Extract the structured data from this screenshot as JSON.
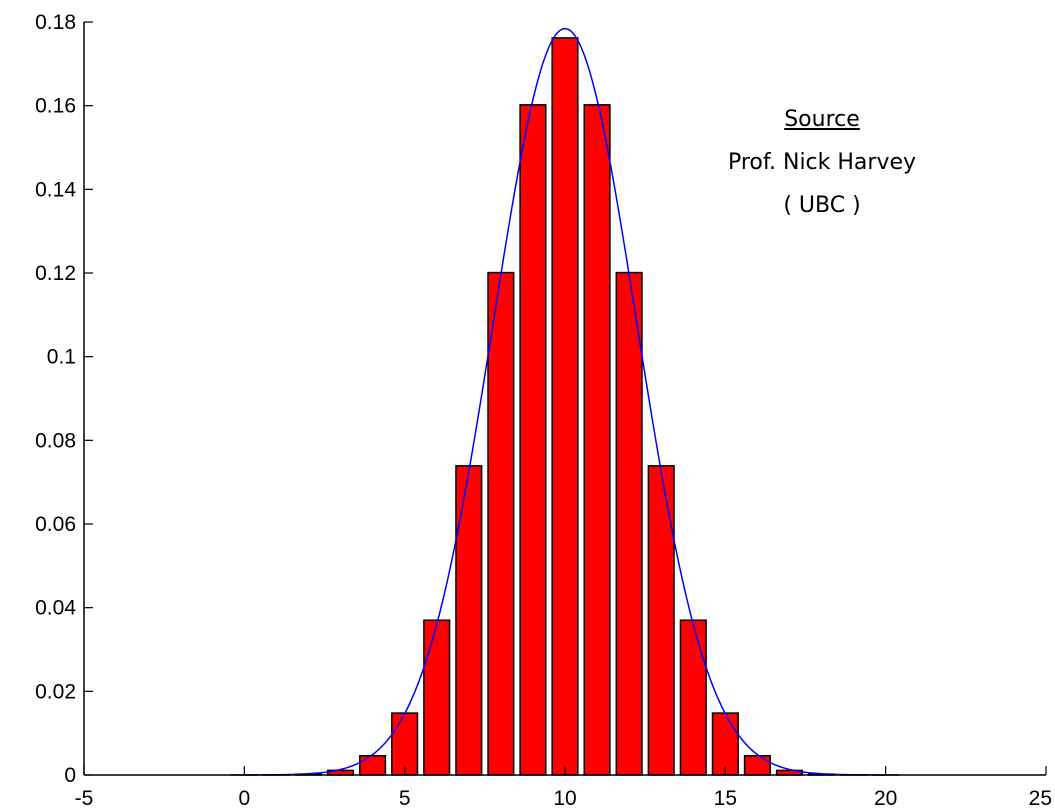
{
  "chart_data": {
    "type": "bar",
    "title": "",
    "xlabel": "",
    "ylabel": "",
    "xlim": [
      -5,
      25
    ],
    "ylim": [
      0,
      0.18
    ],
    "xticks": [
      -5,
      0,
      5,
      10,
      15,
      20,
      25
    ],
    "xtick_labels": [
      "-5",
      "0",
      "5",
      "10",
      "15",
      "20",
      "25"
    ],
    "yticks": [
      0,
      0.02,
      0.04,
      0.06,
      0.08,
      0.1,
      0.12,
      0.14,
      0.16,
      0.18
    ],
    "ytick_labels": [
      "0",
      "0.02",
      "0.04",
      "0.06",
      "0.08",
      "0.1",
      "0.12",
      "0.14",
      "0.16",
      "0.18"
    ],
    "grid": false,
    "series": [
      {
        "kind": "bar",
        "color": "#ff0000",
        "edge_color": "#000000",
        "x": [
          0,
          1,
          2,
          3,
          4,
          5,
          6,
          7,
          8,
          9,
          10,
          11,
          12,
          13,
          14,
          15,
          16,
          17,
          18,
          19,
          20
        ],
        "values": [
          1e-06,
          2e-05,
          0.0002,
          0.0011,
          0.0046,
          0.0148,
          0.037,
          0.0739,
          0.1201,
          0.1602,
          0.1762,
          0.1602,
          0.1201,
          0.0739,
          0.037,
          0.0148,
          0.0046,
          0.0011,
          0.0002,
          2e-05,
          1e-06
        ]
      },
      {
        "kind": "line",
        "color": "#0000ff",
        "curve": "normal",
        "mean": 10,
        "sd": 2.236,
        "x_range": [
          0,
          20
        ]
      }
    ],
    "annotation": {
      "title": "Source",
      "lines": [
        "Prof. Nick Harvey",
        "( UBC )"
      ]
    }
  }
}
